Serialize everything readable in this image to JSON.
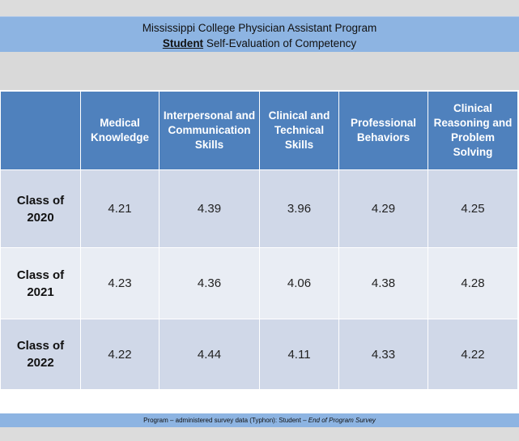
{
  "title": {
    "line1": "Mississippi College Physician Assistant Program",
    "line2_emphasis": "Student",
    "line2_rest": " Self-Evaluation of Competency"
  },
  "table": {
    "columns": [
      "Medical Knowledge",
      "Interpersonal and Communication Skills",
      "Clinical and Technical Skills",
      "Professional Behaviors",
      "Clinical Reasoning and Problem Solving"
    ],
    "rows": [
      {
        "label": "Class of 2020",
        "values": [
          "4.21",
          "4.39",
          "3.96",
          "4.29",
          "4.25"
        ]
      },
      {
        "label": "Class of 2021",
        "values": [
          "4.23",
          "4.36",
          "4.06",
          "4.38",
          "4.28"
        ]
      },
      {
        "label": "Class of 2022",
        "values": [
          "4.22",
          "4.44",
          "4.11",
          "4.33",
          "4.22"
        ]
      }
    ]
  },
  "footer": {
    "source": "Program – administered survey data (Typhon): Student – ",
    "survey_name": "End of Program Survey"
  },
  "colors": {
    "header_fill": "#4f81bd",
    "band_fill": "#8db4e2",
    "row_dark": "#d0d8e8",
    "row_light": "#e9edf4"
  }
}
